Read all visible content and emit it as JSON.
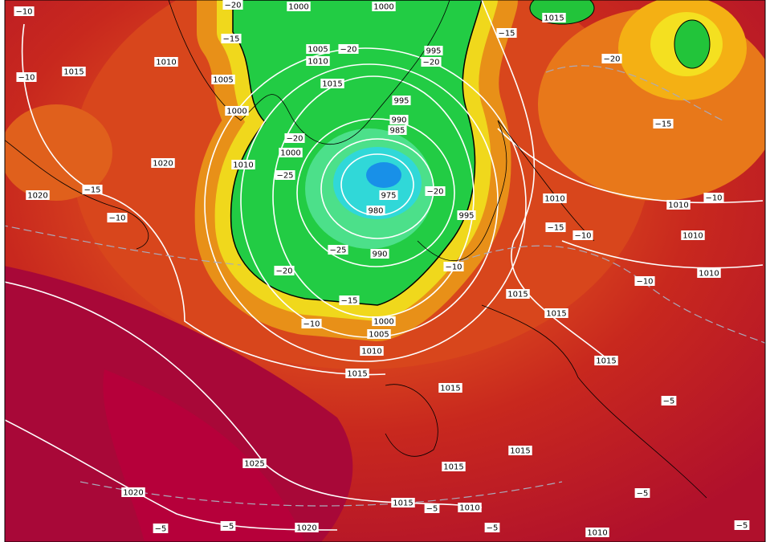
{
  "map": {
    "isobar_labels": [
      1000,
      1000,
      1015,
      1010,
      1015,
      1005,
      1010,
      995,
      1005,
      1015,
      1000,
      995,
      990,
      985,
      1000,
      1010,
      1020,
      1020,
      975,
      980,
      995,
      1010,
      1010,
      1010,
      990,
      1010,
      1015,
      1000,
      1005,
      1010,
      1015,
      1015,
      1015,
      1015,
      1015,
      1015,
      1025,
      1020,
      1015,
      1010,
      1020,
      1010
    ],
    "temperature_labels": [
      "−10",
      "−20",
      "−15",
      "−20",
      "−20",
      "−15",
      "−20",
      "−10",
      "−20",
      "−25",
      "−15",
      "−10",
      "−15",
      "−20",
      "−10",
      "−15",
      "−10",
      "−10",
      "−25",
      "−20",
      "−10",
      "−15",
      "−10",
      "−5",
      "−5",
      "−5",
      "−5",
      "−5",
      "−5",
      "−5"
    ]
  }
}
